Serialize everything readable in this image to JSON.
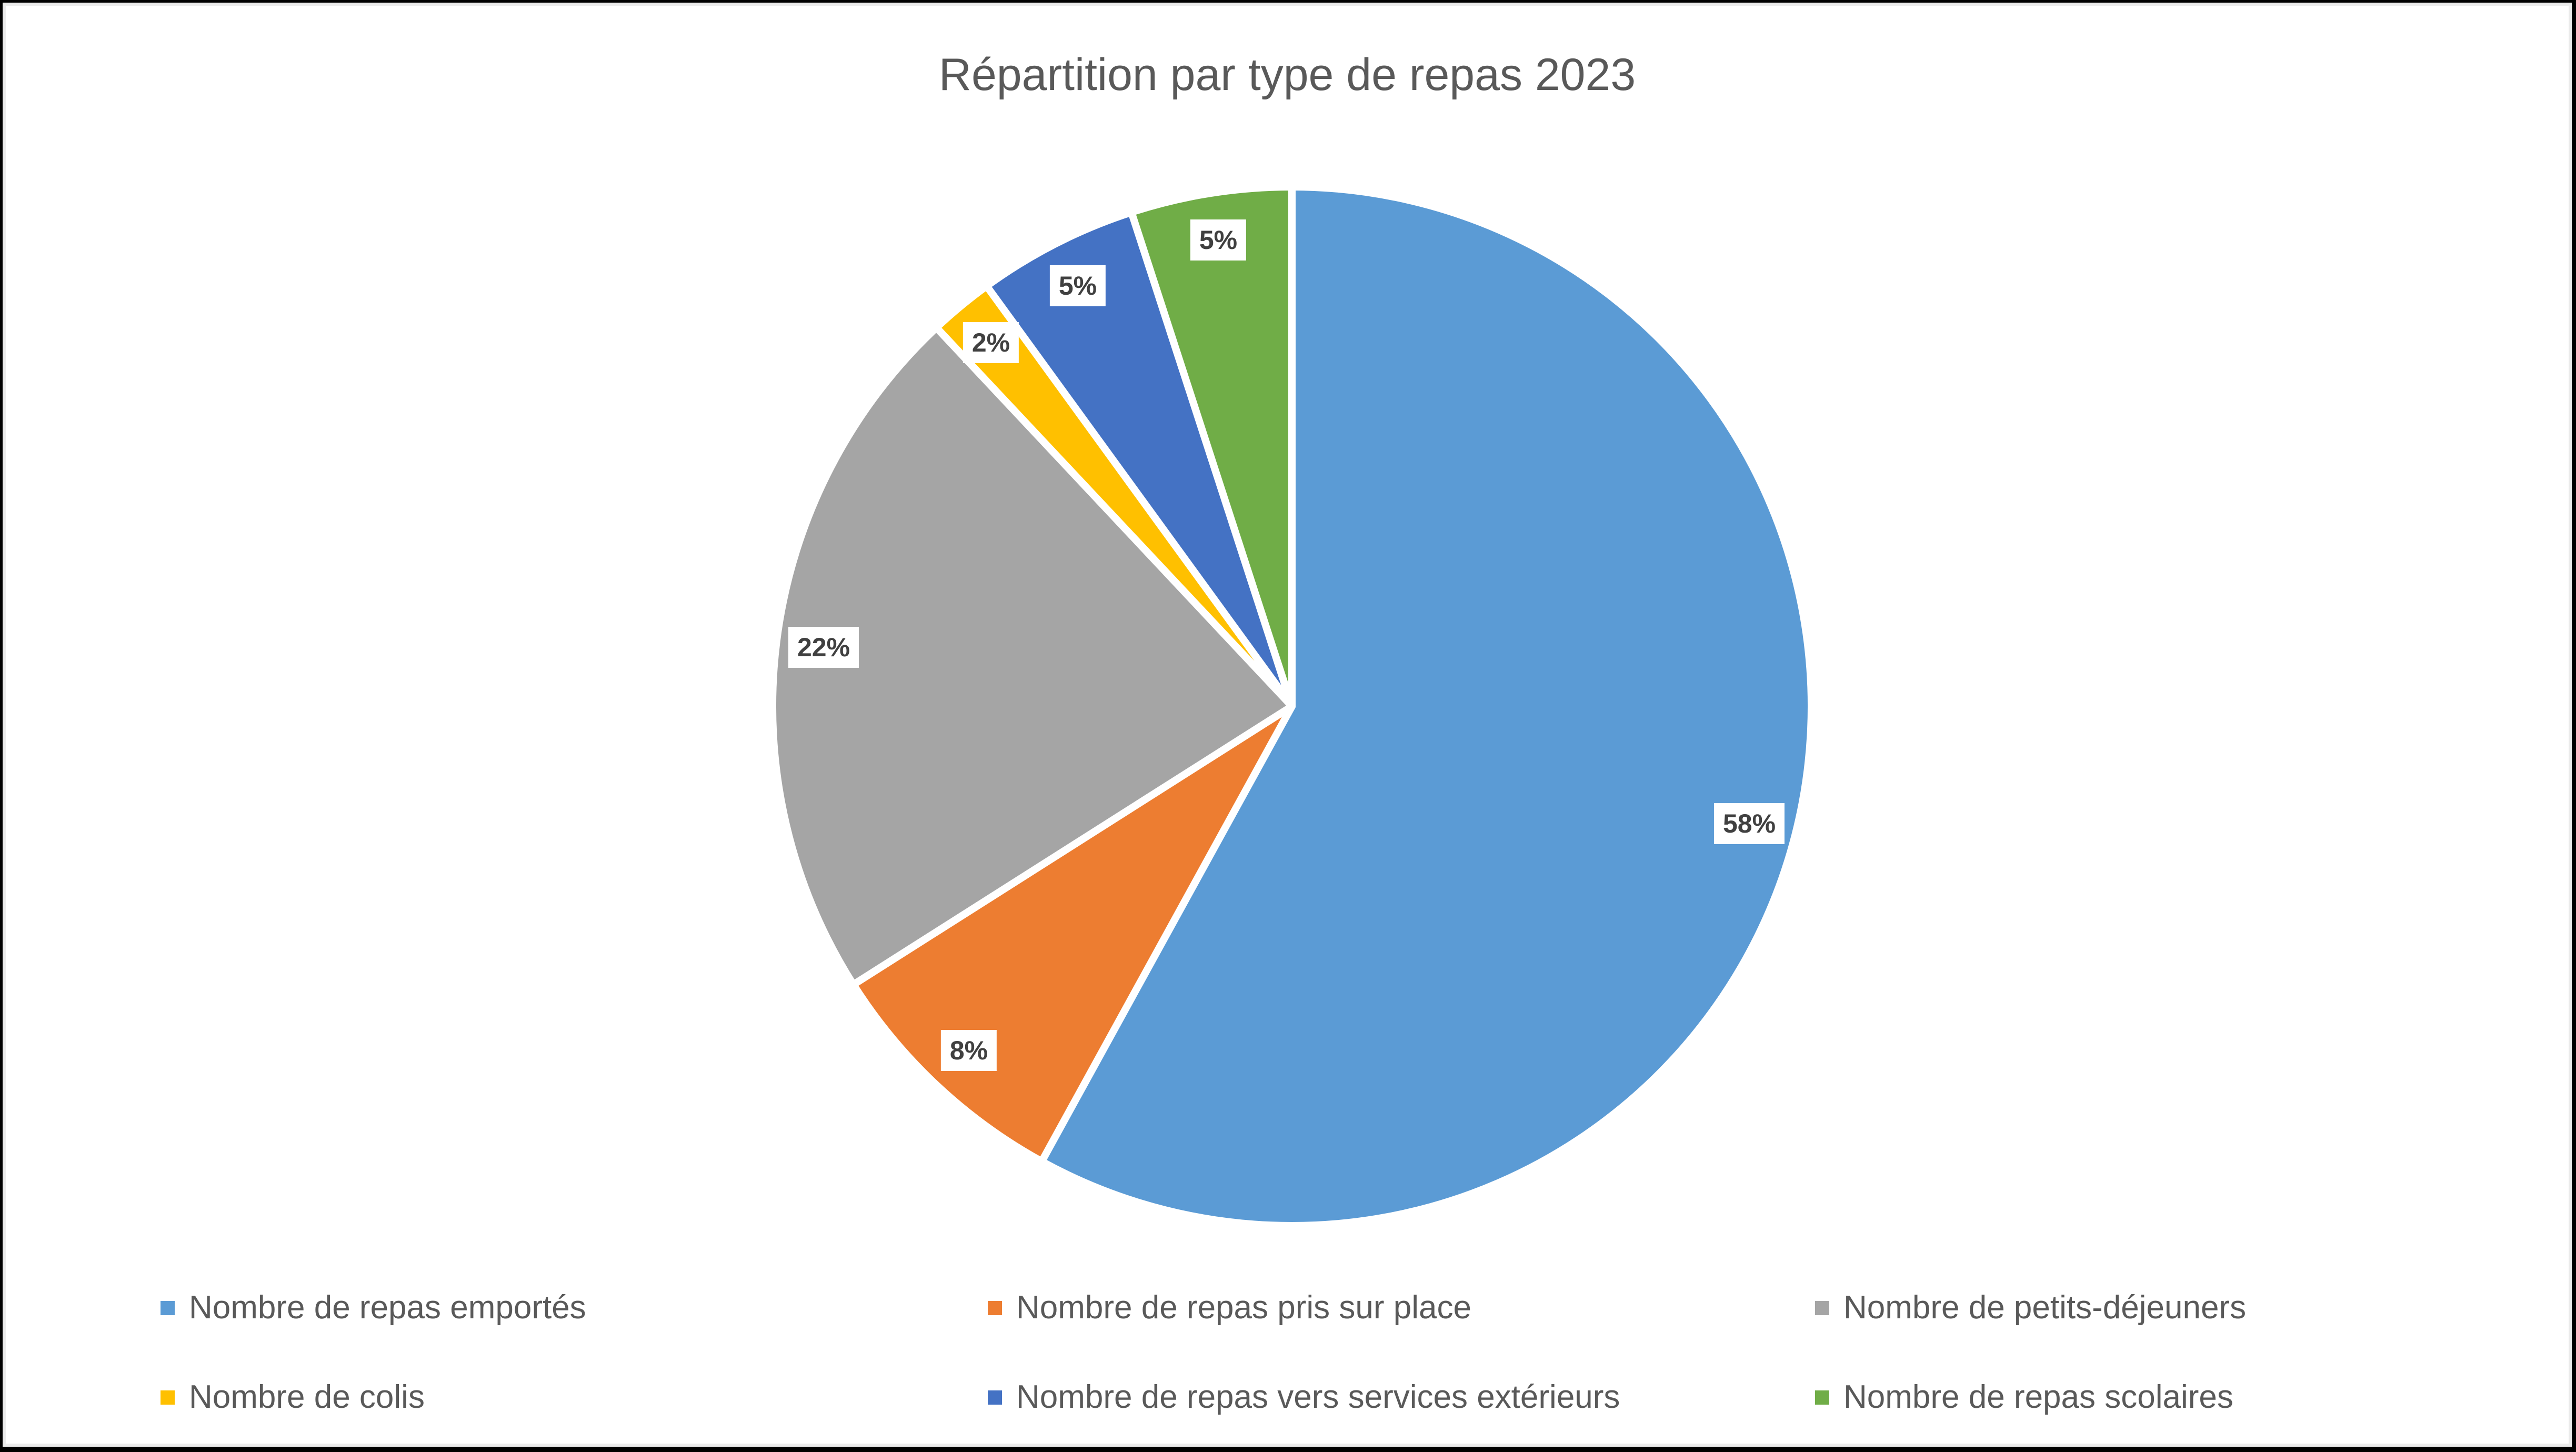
{
  "window": {
    "background": "#ffffff",
    "border_color": "#000000"
  },
  "chart_data": {
    "type": "pie",
    "title": "Répartition par type de repas 2023",
    "title_color": "#595959",
    "categories": [
      "Nombre de repas emportés",
      "Nombre de repas pris sur place",
      "Nombre de petits-déjeuners",
      "Nombre de colis",
      "Nombre de repas vers services extérieurs",
      "Nombre de repas scolaires"
    ],
    "values": [
      58,
      8,
      22,
      2,
      5,
      5
    ],
    "unit": "%",
    "data_labels": [
      "58%",
      "8%",
      "22%",
      "2%",
      "5%",
      "5%"
    ],
    "colors": [
      "#5B9BD5",
      "#ED7D31",
      "#A5A5A5",
      "#FFC000",
      "#4472C4",
      "#70AD47"
    ],
    "slice_border_color": "#ffffff",
    "data_label_background": "#ffffff",
    "data_label_text_color": "#404040",
    "start_angle_deg": 0,
    "direction": "clockwise",
    "legend_position": "bottom",
    "legend_rows": 2,
    "legend_columns": 3,
    "legend_text_color": "#595959",
    "grid": false
  }
}
